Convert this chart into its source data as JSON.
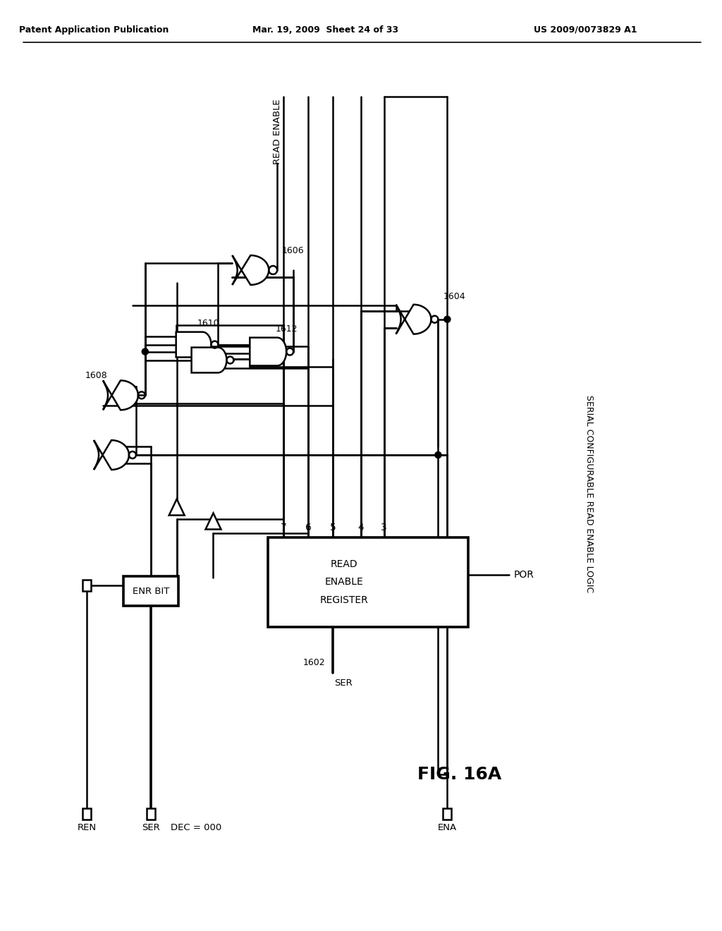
{
  "bg_color": "#ffffff",
  "line_color": "#000000",
  "header_left": "Patent Application Publication",
  "header_mid": "Mar. 19, 2009  Sheet 24 of 33",
  "header_right": "US 2009/0073829 A1",
  "fig_label": "FIG. 16A",
  "side_label": "SERIAL CONFIGURABLE READ ENABLE LOGIC",
  "read_enable": "READ ENABLE",
  "lbl_1602": "1602",
  "lbl_1604": "1604",
  "lbl_1606": "1606",
  "lbl_1608": "1608",
  "lbl_1610": "1610",
  "lbl_1612": "1612",
  "reg_lines": [
    "READ",
    "ENABLE",
    "REGISTER"
  ],
  "enr_bit": "ENR BIT",
  "ren": "REN",
  "ser": "SER",
  "dec": "DEC = 000",
  "ena": "ENA",
  "por": "POR",
  "ser_bot": "SER",
  "ports": [
    "7",
    "6",
    "5",
    "4",
    "3"
  ],
  "gate_lw": 1.8,
  "wire_lw": 1.8,
  "thick_lw": 2.6
}
